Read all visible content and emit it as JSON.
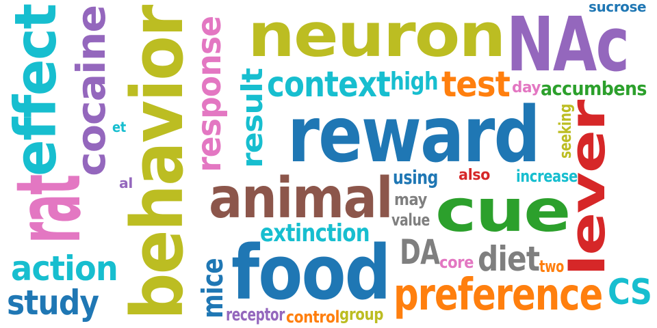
{
  "palette": {
    "blue": "#1f77b4",
    "olive": "#bcbd22",
    "purple": "#9467bd",
    "cyan": "#17becf",
    "pink": "#e377c2",
    "brown": "#8c564b",
    "green": "#2ca02c",
    "orange": "#ff7f0e",
    "red": "#d62728",
    "gray": "#7f7f7f"
  },
  "words": [
    {
      "text": "neuron",
      "color": "olive"
    },
    {
      "text": "NAc",
      "color": "purple"
    },
    {
      "text": "sucrose",
      "color": "blue"
    },
    {
      "text": "reward",
      "color": "blue"
    },
    {
      "text": "behavior",
      "color": "olive"
    },
    {
      "text": "effect",
      "color": "cyan"
    },
    {
      "text": "cocaine",
      "color": "purple"
    },
    {
      "text": "rat",
      "color": "pink"
    },
    {
      "text": "response",
      "color": "pink"
    },
    {
      "text": "result",
      "color": "cyan"
    },
    {
      "text": "context",
      "color": "cyan"
    },
    {
      "text": "high",
      "color": "cyan"
    },
    {
      "text": "test",
      "color": "orange"
    },
    {
      "text": "day",
      "color": "pink"
    },
    {
      "text": "accumbens",
      "color": "green"
    },
    {
      "text": "lever",
      "color": "red"
    },
    {
      "text": "seeking",
      "color": "olive"
    },
    {
      "text": "animal",
      "color": "brown"
    },
    {
      "text": "cue",
      "color": "green"
    },
    {
      "text": "food",
      "color": "blue"
    },
    {
      "text": "preference",
      "color": "orange"
    },
    {
      "text": "action",
      "color": "cyan"
    },
    {
      "text": "study",
      "color": "blue"
    },
    {
      "text": "extinction",
      "color": "cyan"
    },
    {
      "text": "using",
      "color": "blue"
    },
    {
      "text": "also",
      "color": "red"
    },
    {
      "text": "increase",
      "color": "cyan"
    },
    {
      "text": "may",
      "color": "gray"
    },
    {
      "text": "value",
      "color": "gray"
    },
    {
      "text": "DA",
      "color": "gray"
    },
    {
      "text": "core",
      "color": "pink"
    },
    {
      "text": "diet",
      "color": "gray"
    },
    {
      "text": "two",
      "color": "orange"
    },
    {
      "text": "CS",
      "color": "cyan"
    },
    {
      "text": "mice",
      "color": "blue"
    },
    {
      "text": "receptor",
      "color": "purple"
    },
    {
      "text": "control",
      "color": "orange"
    },
    {
      "text": "group",
      "color": "olive"
    },
    {
      "text": "et",
      "color": "cyan"
    },
    {
      "text": "al",
      "color": "purple"
    }
  ]
}
